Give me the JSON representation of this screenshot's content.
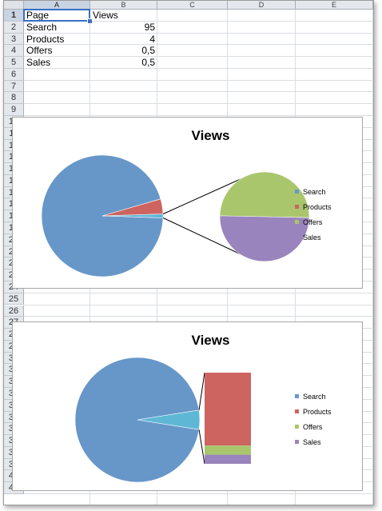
{
  "spreadsheet": {
    "columns": [
      "A",
      "B",
      "C",
      "D",
      "E"
    ],
    "selected_column": "A",
    "row_count": 41,
    "selected_row": 1,
    "cells": [
      {
        "ref": "A1",
        "value": "Page"
      },
      {
        "ref": "B1",
        "value": "Views"
      },
      {
        "ref": "A2",
        "value": "Search"
      },
      {
        "ref": "B2",
        "value": "95"
      },
      {
        "ref": "A3",
        "value": "Products"
      },
      {
        "ref": "B3",
        "value": "4"
      },
      {
        "ref": "A4",
        "value": "Offers"
      },
      {
        "ref": "B4",
        "value": "0,5"
      },
      {
        "ref": "A5",
        "value": "Sales"
      },
      {
        "ref": "B5",
        "value": "0,5"
      }
    ],
    "active_cell": "A1"
  },
  "chart_data": [
    {
      "type": "pie",
      "variant": "pie-of-pie",
      "title": "Views",
      "categories": [
        "Search",
        "Products",
        "Offers",
        "Sales"
      ],
      "values": [
        95,
        4,
        0.5,
        0.5
      ],
      "secondary_categories": [
        "Offers",
        "Sales"
      ],
      "legend": "right",
      "colors": {
        "Search": "#6797c9",
        "Products": "#cd6460",
        "Offers": "#a9c66d",
        "Sales": "#9a84bd",
        "Other": "#5fb7d6"
      }
    },
    {
      "type": "pie",
      "variant": "bar-of-pie",
      "title": "Views",
      "categories": [
        "Search",
        "Products",
        "Offers",
        "Sales"
      ],
      "values": [
        95,
        4,
        0.5,
        0.5
      ],
      "secondary_categories": [
        "Products",
        "Offers",
        "Sales"
      ],
      "legend": "right",
      "colors": {
        "Search": "#6797c9",
        "Products": "#cd6460",
        "Offers": "#a9c66d",
        "Sales": "#9a84bd",
        "Other": "#5fb7d6"
      }
    }
  ]
}
